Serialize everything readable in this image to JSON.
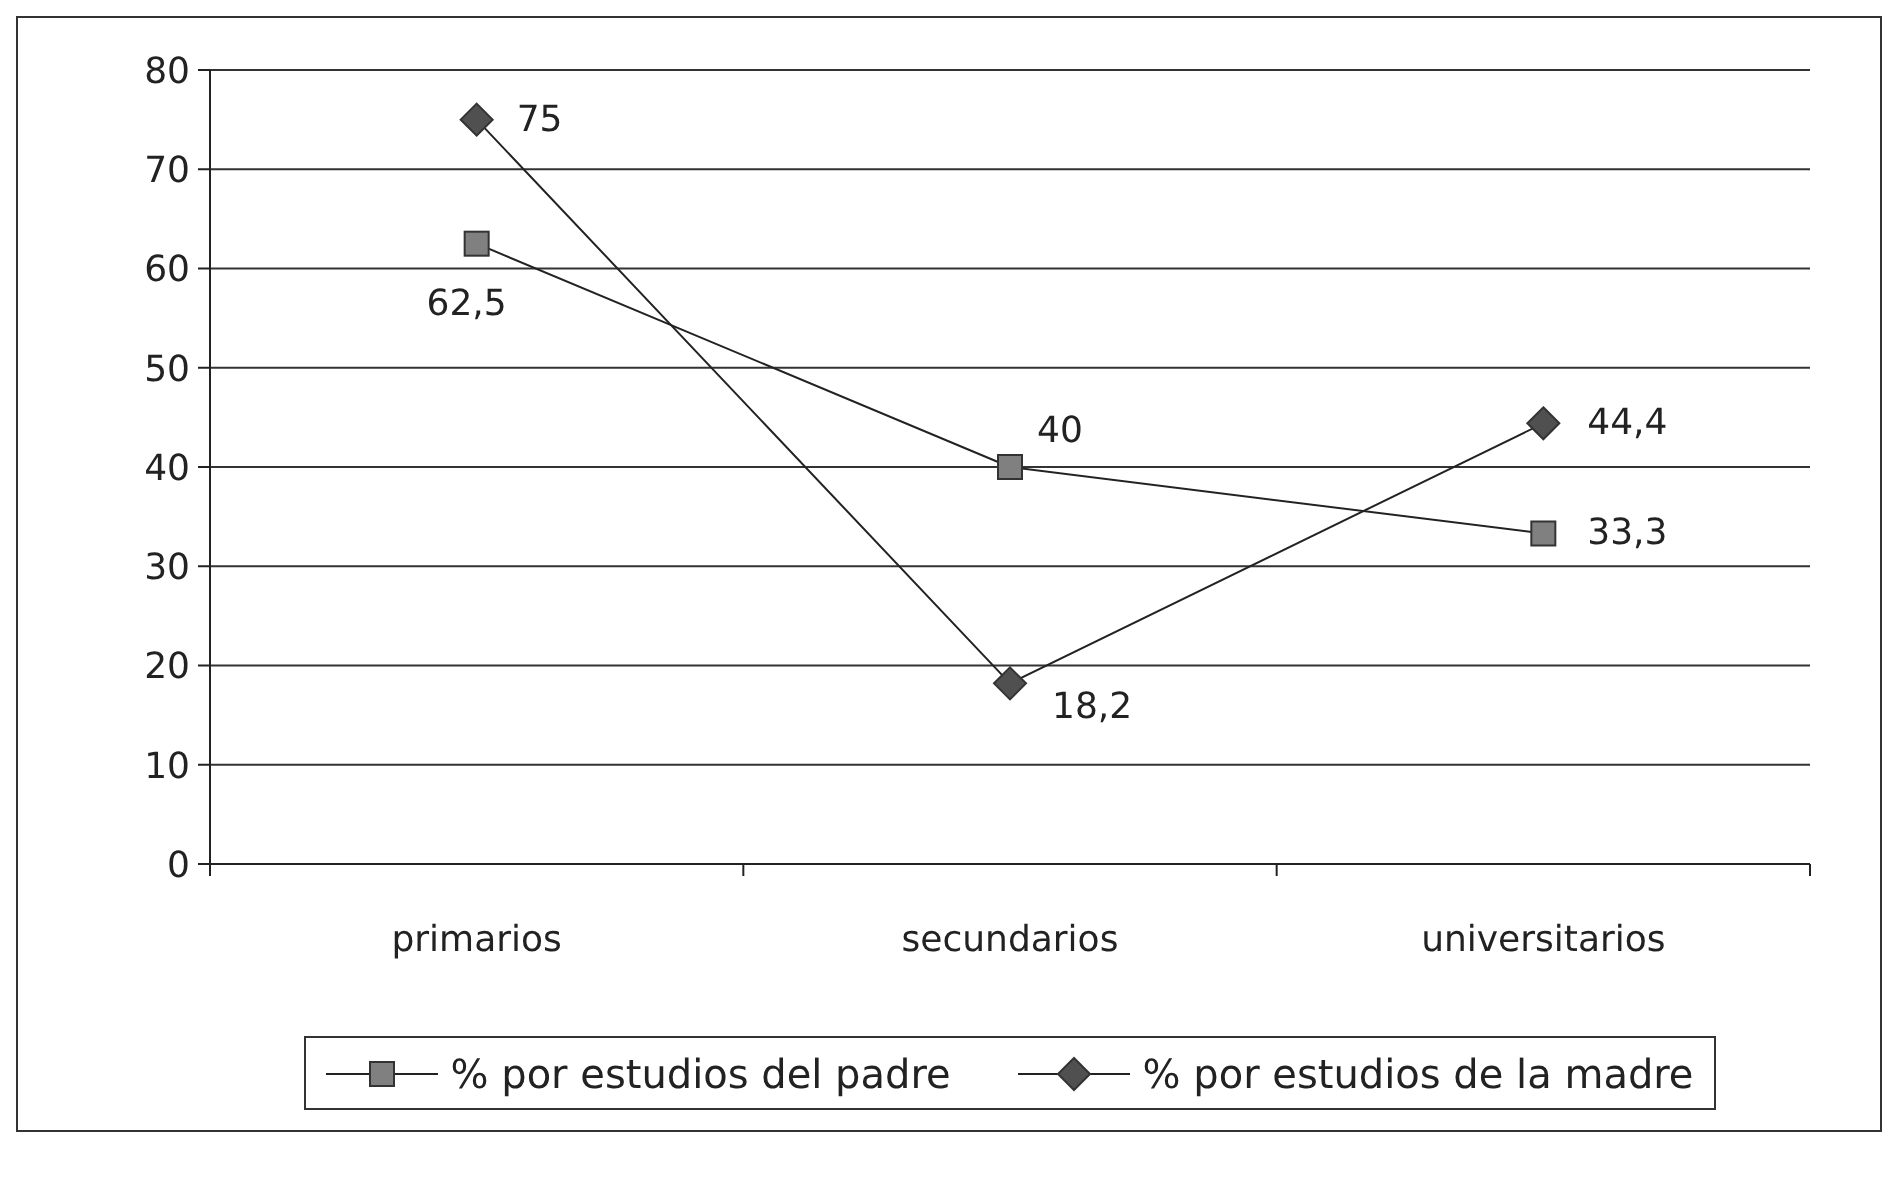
{
  "chart_data": {
    "type": "line",
    "categories": [
      "primarios",
      "secundarios",
      "universitarios"
    ],
    "series": [
      {
        "name": "% por estudios del padre",
        "color": "#808080",
        "marker": "square",
        "values": [
          62.5,
          40,
          33.3
        ],
        "value_labels": [
          "62,5",
          "40",
          "33,3"
        ]
      },
      {
        "name": "% por estudios de la madre",
        "color": "#505050",
        "marker": "diamond",
        "values": [
          75,
          18.2,
          44.4
        ],
        "value_labels": [
          "75",
          "18,2",
          "44,4"
        ]
      }
    ],
    "ylim": [
      0,
      80
    ],
    "yticks": [
      0,
      10,
      20,
      30,
      40,
      50,
      60,
      70,
      80
    ],
    "grid": "y",
    "legend": "bottom",
    "line_style": "solid"
  }
}
